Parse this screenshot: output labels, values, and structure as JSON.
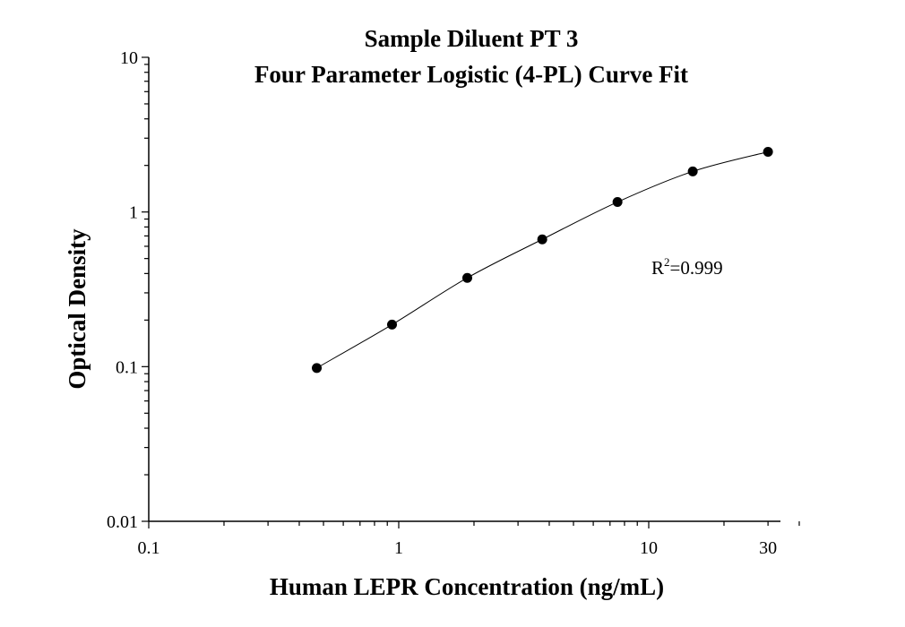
{
  "chart_data": {
    "type": "scatter",
    "title": "Sample Diluent PT 3",
    "subtitle": "Four Parameter Logistic (4-PL) Curve Fit",
    "xlabel": "Human LEPR Concentration (ng/mL)",
    "ylabel": "Optical Density",
    "x_scale": "log",
    "y_scale": "log",
    "xlim": [
      0.1,
      40
    ],
    "ylim": [
      0.01,
      10
    ],
    "x_ticks": [
      0.1,
      1,
      10,
      30
    ],
    "x_tick_labels": [
      "0.1",
      "1",
      "10",
      "30"
    ],
    "y_ticks": [
      0.01,
      0.1,
      1,
      10
    ],
    "y_tick_labels": [
      "0.01",
      "0.1",
      "1",
      "10"
    ],
    "grid": false,
    "series": [
      {
        "x": [
          0.47,
          0.94,
          1.88,
          3.75,
          7.5,
          15,
          30
        ],
        "y": [
          0.098,
          0.187,
          0.375,
          0.665,
          1.16,
          1.83,
          2.45
        ]
      }
    ],
    "fit_curve": {
      "type": "4-PL",
      "x_range": [
        0.47,
        30
      ]
    },
    "annotation": {
      "base": "R",
      "sup": "2",
      "rest": "=0.999"
    },
    "colors": {
      "points": "#000000",
      "curve": "#000000",
      "axes": "#000000"
    }
  }
}
